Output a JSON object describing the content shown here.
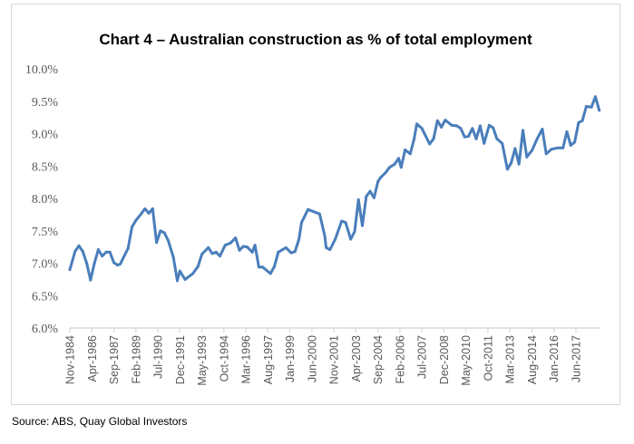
{
  "chart_data": {
    "type": "line",
    "title": "Chart 4 – Australian construction as % of total employment",
    "source": "Source: ABS, Quay Global Investors",
    "xlabel": "",
    "ylabel": "",
    "ylim": [
      6.0,
      10.0
    ],
    "y_ticks": [
      "6.0%",
      "6.5%",
      "7.0%",
      "7.5%",
      "8.0%",
      "8.5%",
      "9.0%",
      "9.5%",
      "10.0%"
    ],
    "x_ticks": [
      "Nov-1984",
      "Apr-1986",
      "Sep-1987",
      "Feb-1989",
      "Jul-1990",
      "Dec-1991",
      "May-1993",
      "Oct-1994",
      "Mar-1996",
      "Aug-1997",
      "Jan-1999",
      "Jun-2000",
      "Nov-2001",
      "Apr-2003",
      "Sep-2004",
      "Feb-2006",
      "Jul-2007",
      "Dec-2008",
      "May-2010",
      "Oct-2011",
      "Mar-2013",
      "Aug-2014",
      "Jan-2016",
      "Jun-2017"
    ],
    "grid": false,
    "line_color": "#4a7ebb",
    "series": [
      {
        "x": [
          "Nov-1984",
          "Mar-1985",
          "Jun-1985",
          "Sep-1985",
          "Dec-1985",
          "Mar-1986",
          "Jun-1986",
          "Sep-1986",
          "Dec-1986",
          "Mar-1987",
          "Jun-1987",
          "Sep-1987",
          "Dec-1987",
          "Feb-1988",
          "May-1988",
          "Aug-1988",
          "Nov-1988",
          "Feb-1989",
          "Jun-1989",
          "Sep-1989",
          "Dec-1989",
          "Mar-1990",
          "Jun-1990",
          "Sep-1990",
          "Dec-1990",
          "Mar-1991",
          "Jul-1991",
          "Oct-1991",
          "Dec-1991",
          "Apr-1992",
          "Oct-1992",
          "Feb-1993",
          "May-1993",
          "Oct-1993",
          "Jan-1994",
          "Apr-1994",
          "Jul-1994",
          "Nov-1994",
          "Mar-1995",
          "Jul-1995",
          "Oct-1995",
          "Jan-1996",
          "Apr-1996",
          "Aug-1996",
          "Oct-1996",
          "Jan-1997",
          "Apr-1997",
          "Oct-1997",
          "Jan-1998",
          "Apr-1998",
          "Oct-1998",
          "Feb-1999",
          "May-1999",
          "Aug-1999",
          "Oct-1999",
          "Mar-2000",
          "Dec-2000",
          "Apr-2001",
          "May-2001",
          "Aug-2001",
          "Dec-2001",
          "May-2002",
          "Aug-2002",
          "Dec-2002",
          "Mar-2003",
          "Jun-2003",
          "Sep-2003",
          "Dec-2003",
          "Mar-2004",
          "Jun-2004",
          "Sep-2004",
          "Nov-2004",
          "Mar-2005",
          "Jun-2005",
          "Oct-2005",
          "Jan-2006",
          "Mar-2006",
          "Jun-2006",
          "Oct-2006",
          "Jan-2007",
          "Mar-2007",
          "Jul-2007",
          "Jan-2008",
          "Apr-2008",
          "Jul-2008",
          "Oct-2008",
          "Jan-2009",
          "Jun-2009",
          "Oct-2009",
          "Jan-2010",
          "Apr-2010",
          "Jul-2010",
          "Oct-2010",
          "Jan-2011",
          "Apr-2011",
          "Jul-2011",
          "Nov-2011",
          "Feb-2012",
          "May-2012",
          "Sep-2012",
          "Jan-2013",
          "Apr-2013",
          "Jul-2013",
          "Oct-2013",
          "Jan-2014",
          "Apr-2014",
          "Aug-2014",
          "Dec-2014",
          "Apr-2015",
          "Jul-2015",
          "Nov-2015",
          "Apr-2016",
          "Aug-2016",
          "Nov-2016",
          "Feb-2017",
          "May-2017",
          "Aug-2017",
          "Nov-2017",
          "Feb-2018",
          "Jun-2018",
          "Sep-2018",
          "Dec-2018"
        ],
        "y": [
          6.9,
          7.18,
          7.27,
          7.18,
          7.0,
          6.74,
          7.0,
          7.21,
          7.11,
          7.17,
          7.17,
          7.01,
          6.97,
          6.99,
          7.11,
          7.23,
          7.56,
          7.66,
          7.76,
          7.84,
          7.77,
          7.84,
          7.32,
          7.5,
          7.47,
          7.35,
          7.09,
          6.73,
          6.88,
          6.75,
          6.84,
          6.95,
          7.14,
          7.24,
          7.15,
          7.17,
          7.11,
          7.28,
          7.31,
          7.39,
          7.2,
          7.26,
          7.25,
          7.17,
          7.28,
          6.94,
          6.94,
          6.84,
          6.95,
          7.17,
          7.24,
          7.16,
          7.18,
          7.37,
          7.63,
          7.83,
          7.76,
          7.42,
          7.24,
          7.21,
          7.37,
          7.65,
          7.63,
          7.37,
          7.49,
          7.98,
          7.58,
          8.03,
          8.11,
          8.01,
          8.26,
          8.32,
          8.4,
          8.48,
          8.53,
          8.62,
          8.48,
          8.75,
          8.69,
          8.92,
          9.15,
          9.08,
          8.84,
          8.92,
          9.2,
          9.1,
          9.21,
          9.13,
          9.12,
          9.08,
          8.95,
          8.96,
          9.08,
          8.92,
          9.12,
          8.85,
          9.13,
          9.09,
          8.92,
          8.85,
          8.45,
          8.55,
          8.77,
          8.53,
          9.05,
          8.64,
          8.74,
          8.92,
          9.07,
          8.69,
          8.76,
          8.78,
          8.78,
          9.03,
          8.82,
          8.87,
          9.17,
          9.2,
          9.42,
          9.41,
          9.57,
          9.36
        ]
      }
    ]
  }
}
